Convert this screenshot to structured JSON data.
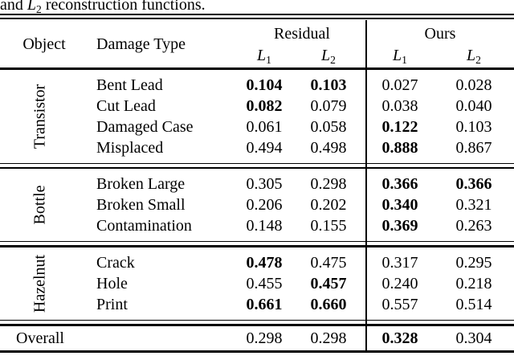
{
  "page": {
    "caption": {
      "prefix": "and ",
      "math_letter": "L",
      "math_sub": "2",
      "suffix": " reconstruction functions."
    }
  },
  "colors": {
    "text": "#000000",
    "background": "#ffffff",
    "rule": "#000000"
  },
  "table": {
    "header": {
      "object": "Object",
      "damage_type": "Damage Type",
      "residual": "Residual",
      "ours": "Ours",
      "sub_headers": {
        "letter": "L",
        "subs": [
          "1",
          "2",
          "1",
          "2"
        ]
      }
    },
    "groups": [
      {
        "object": "Transistor",
        "rows": [
          {
            "damage": "Bent Lead",
            "values": [
              "0.104",
              "0.103",
              "0.027",
              "0.028"
            ],
            "bold": [
              true,
              true,
              false,
              false
            ]
          },
          {
            "damage": "Cut Lead",
            "values": [
              "0.082",
              "0.079",
              "0.038",
              "0.040"
            ],
            "bold": [
              true,
              false,
              false,
              false
            ]
          },
          {
            "damage": "Damaged Case",
            "values": [
              "0.061",
              "0.058",
              "0.122",
              "0.103"
            ],
            "bold": [
              false,
              false,
              true,
              false
            ]
          },
          {
            "damage": "Misplaced",
            "values": [
              "0.494",
              "0.498",
              "0.888",
              "0.867"
            ],
            "bold": [
              false,
              false,
              true,
              false
            ]
          }
        ]
      },
      {
        "object": "Bottle",
        "rows": [
          {
            "damage": "Broken Large",
            "values": [
              "0.305",
              "0.298",
              "0.366",
              "0.366"
            ],
            "bold": [
              false,
              false,
              true,
              true
            ]
          },
          {
            "damage": "Broken Small",
            "values": [
              "0.206",
              "0.202",
              "0.340",
              "0.321"
            ],
            "bold": [
              false,
              false,
              true,
              false
            ]
          },
          {
            "damage": "Contamination",
            "values": [
              "0.148",
              "0.155",
              "0.369",
              "0.263"
            ],
            "bold": [
              false,
              false,
              true,
              false
            ]
          }
        ]
      },
      {
        "object": "Hazelnut",
        "rows": [
          {
            "damage": "Crack",
            "values": [
              "0.478",
              "0.475",
              "0.317",
              "0.295"
            ],
            "bold": [
              true,
              false,
              false,
              false
            ]
          },
          {
            "damage": "Hole",
            "values": [
              "0.455",
              "0.457",
              "0.240",
              "0.218"
            ],
            "bold": [
              false,
              true,
              false,
              false
            ]
          },
          {
            "damage": "Print",
            "values": [
              "0.661",
              "0.660",
              "0.557",
              "0.514"
            ],
            "bold": [
              true,
              true,
              false,
              false
            ]
          }
        ]
      }
    ],
    "overall": {
      "label": "Overall",
      "values": [
        "0.298",
        "0.298",
        "0.328",
        "0.304"
      ],
      "bold": [
        false,
        false,
        true,
        false
      ]
    }
  }
}
